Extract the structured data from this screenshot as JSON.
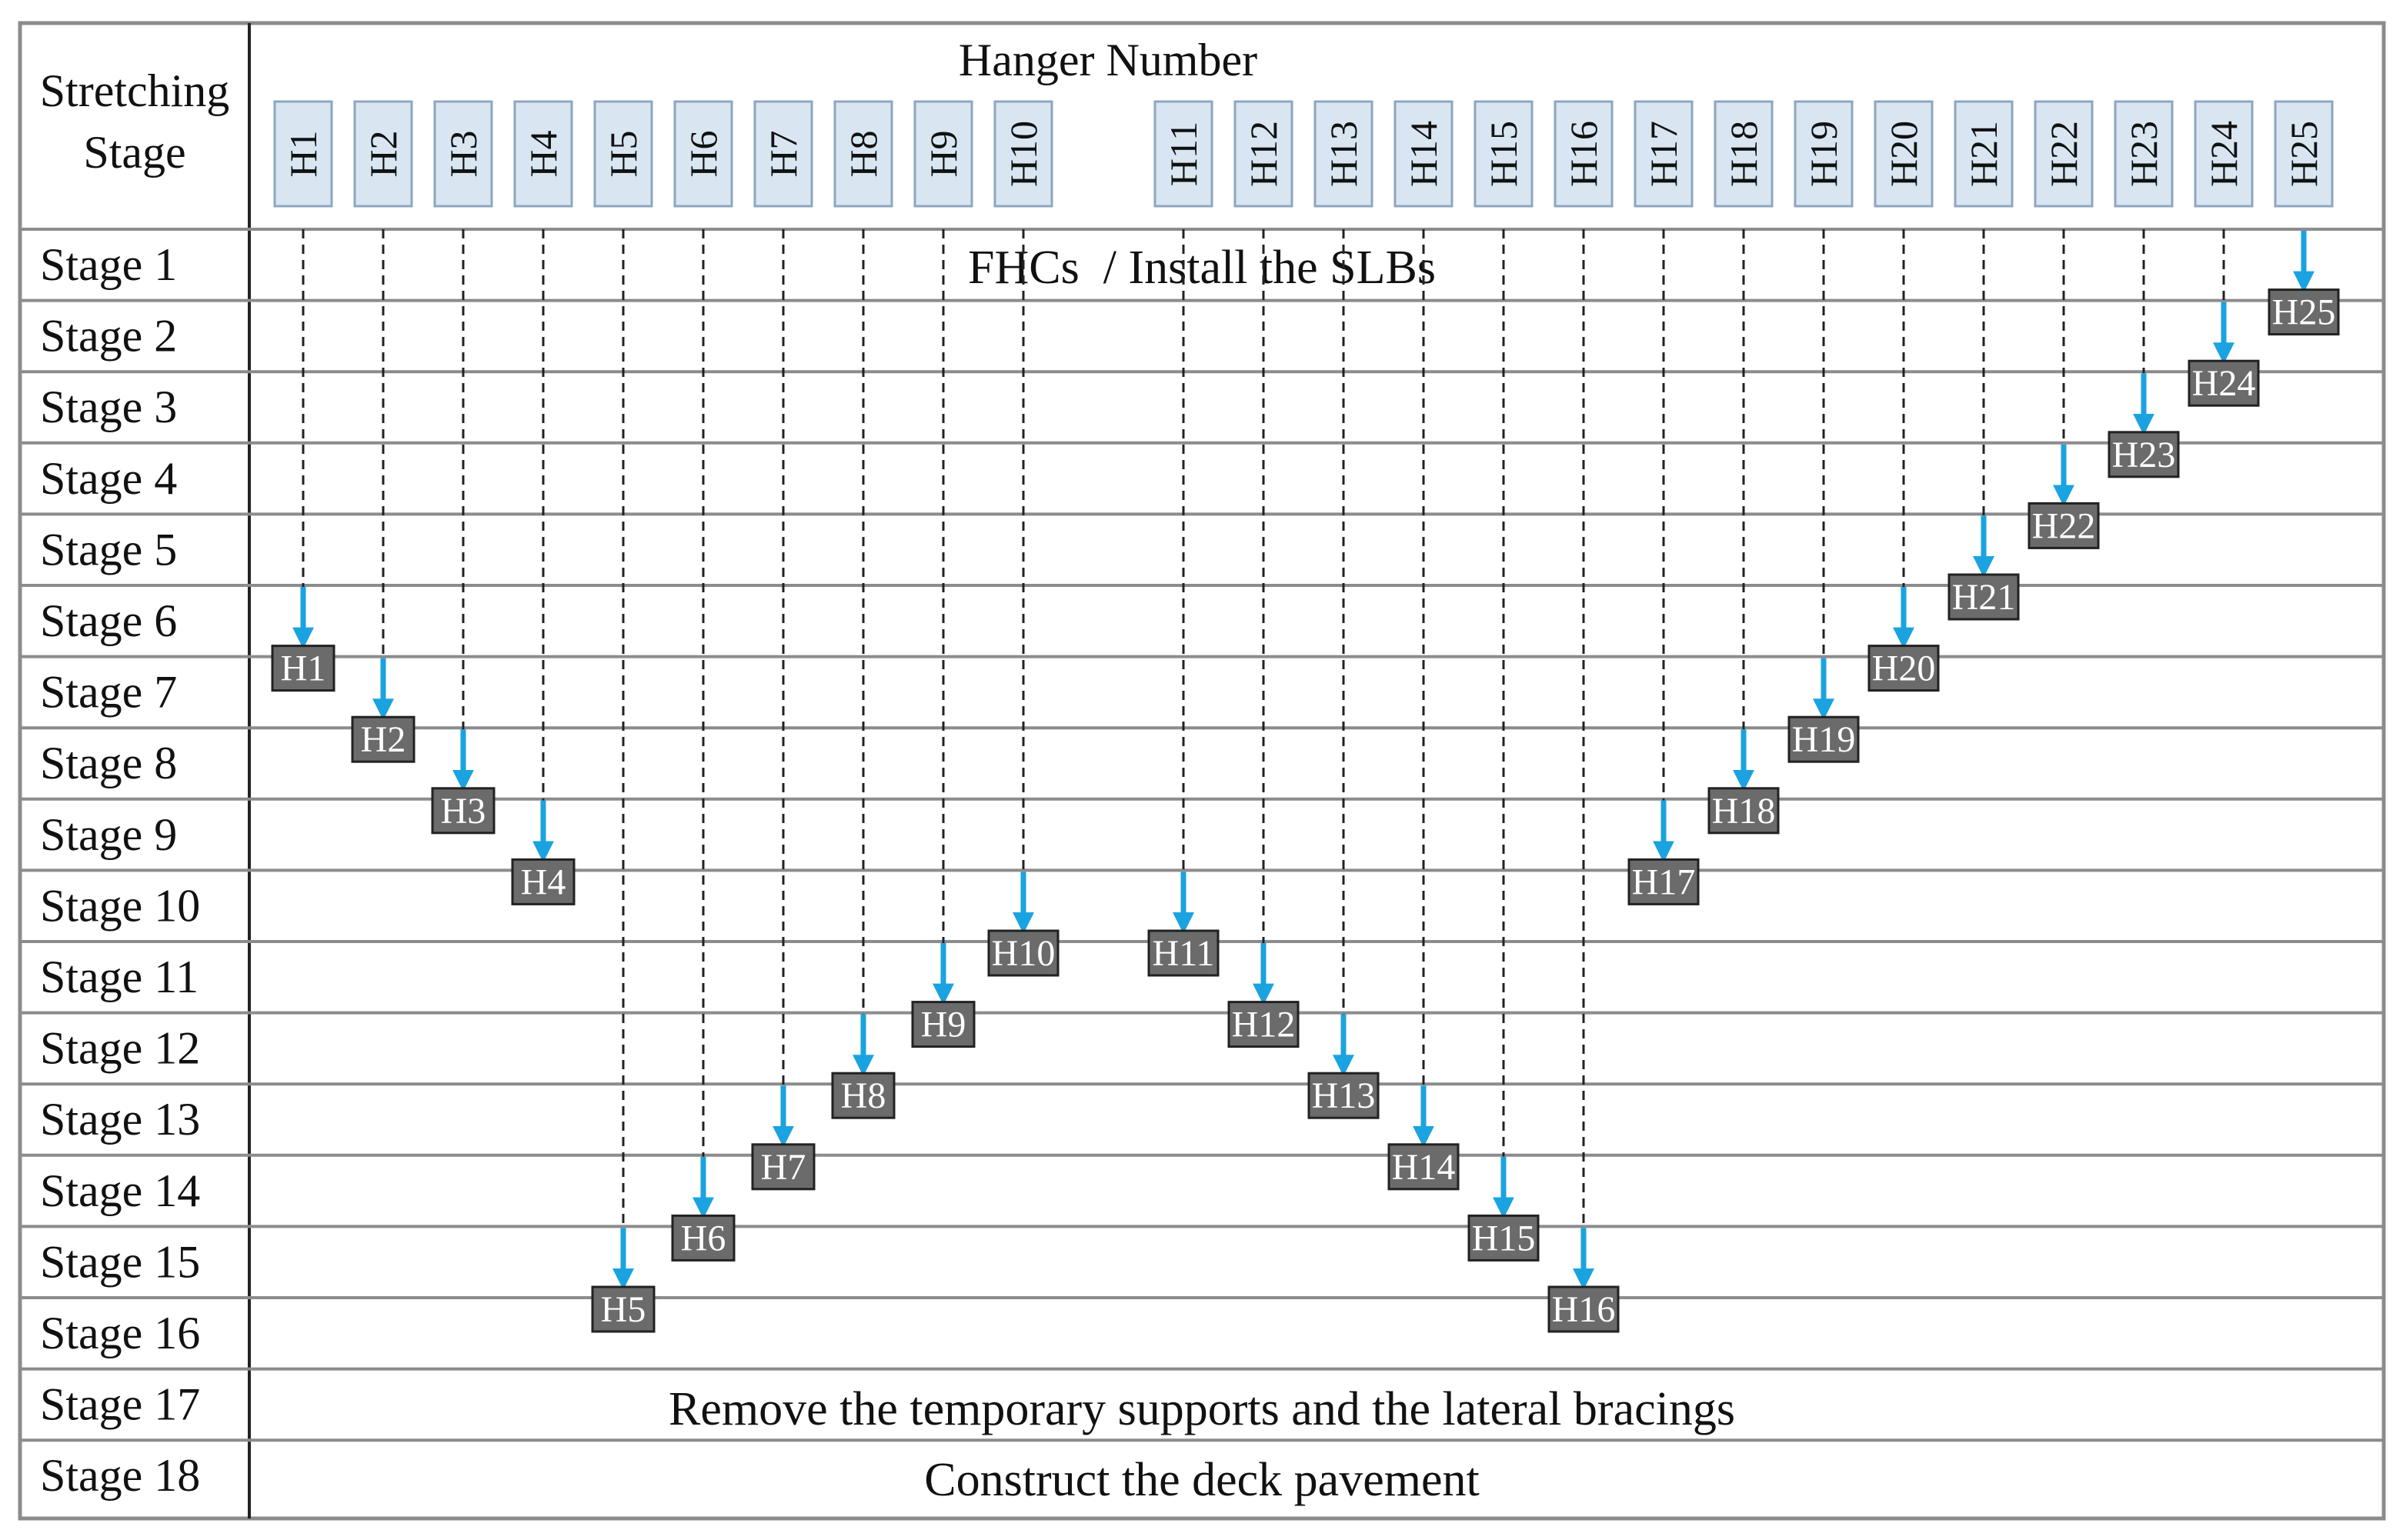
{
  "header": {
    "stage_column_title_line1": "Stretching",
    "stage_column_title_line2": "Stage",
    "hanger_column_title": "Hanger Number"
  },
  "hangers": [
    "H1",
    "H2",
    "H3",
    "H4",
    "H5",
    "H6",
    "H7",
    "H8",
    "H9",
    "H10",
    "H11",
    "H12",
    "H13",
    "H14",
    "H15",
    "H16",
    "H17",
    "H18",
    "H19",
    "H20",
    "H21",
    "H22",
    "H23",
    "H24",
    "H25"
  ],
  "stages": [
    "Stage 1",
    "Stage 2",
    "Stage 3",
    "Stage 4",
    "Stage 5",
    "Stage 6",
    "Stage 7",
    "Stage 8",
    "Stage 9",
    "Stage 10",
    "Stage 11",
    "Stage 12",
    "Stage 13",
    "Stage 14",
    "Stage 15",
    "Stage 16",
    "Stage 17",
    "Stage 18"
  ],
  "stage_notes": [
    {
      "stage": "Stage 1",
      "text": "FHCs  / Install the SLBs"
    },
    {
      "stage": "Stage 17",
      "text": "Remove the temporary supports and the lateral bracings"
    },
    {
      "stage": "Stage 18",
      "text": "Construct the deck pavement"
    }
  ],
  "tensioning": [
    {
      "hanger": "H1",
      "stage": 6
    },
    {
      "hanger": "H2",
      "stage": 7
    },
    {
      "hanger": "H3",
      "stage": 8
    },
    {
      "hanger": "H4",
      "stage": 9
    },
    {
      "hanger": "H5",
      "stage": 15
    },
    {
      "hanger": "H6",
      "stage": 14
    },
    {
      "hanger": "H7",
      "stage": 13
    },
    {
      "hanger": "H8",
      "stage": 12
    },
    {
      "hanger": "H9",
      "stage": 11
    },
    {
      "hanger": "H10",
      "stage": 10
    },
    {
      "hanger": "H11",
      "stage": 10
    },
    {
      "hanger": "H12",
      "stage": 11
    },
    {
      "hanger": "H13",
      "stage": 12
    },
    {
      "hanger": "H14",
      "stage": 13
    },
    {
      "hanger": "H15",
      "stage": 14
    },
    {
      "hanger": "H16",
      "stage": 15
    },
    {
      "hanger": "H17",
      "stage": 9
    },
    {
      "hanger": "H18",
      "stage": 8
    },
    {
      "hanger": "H19",
      "stage": 7
    },
    {
      "hanger": "H20",
      "stage": 6
    },
    {
      "hanger": "H21",
      "stage": 5
    },
    {
      "hanger": "H22",
      "stage": 4
    },
    {
      "hanger": "H23",
      "stage": 3
    },
    {
      "hanger": "H24",
      "stage": 2
    },
    {
      "hanger": "H25",
      "stage": 1
    }
  ],
  "colors": {
    "grid": "#8c8c8c",
    "header_box_fill": "#d9e6f2",
    "header_box_stroke": "#8da6c0",
    "arrow": "#1aa3e0",
    "label_box_fill": "#6b6b6b",
    "label_box_text": "#ffffff",
    "dash_line": "#222222",
    "text": "#111111"
  }
}
